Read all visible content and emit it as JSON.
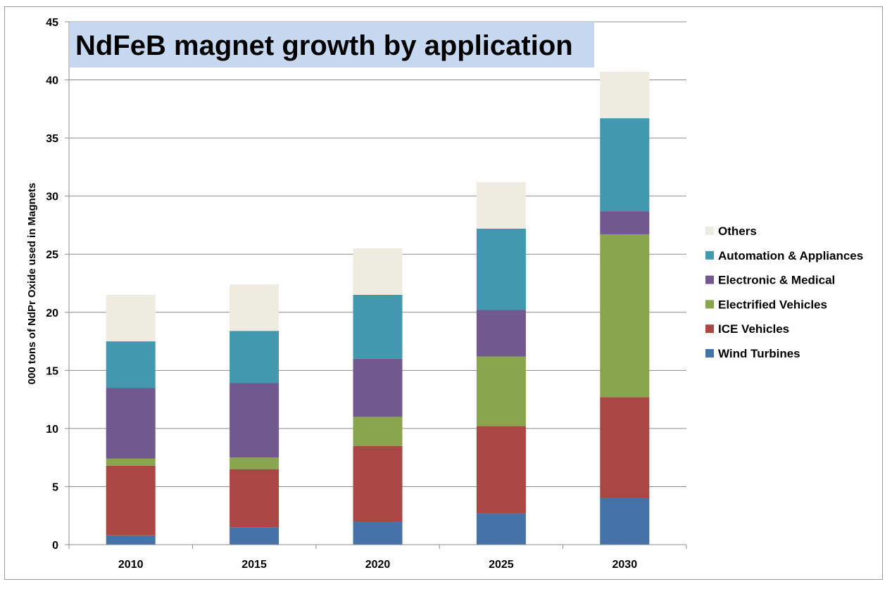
{
  "chart_data": {
    "type": "bar",
    "stacked": true,
    "title": "NdFeB magnet growth by application",
    "xlabel": "",
    "ylabel": "000 tons of NdPr Oxide used in Magnets",
    "categories": [
      "2010",
      "2015",
      "2020",
      "2025",
      "2030"
    ],
    "ylim": [
      0,
      45
    ],
    "yticks": [
      0,
      5,
      10,
      15,
      20,
      25,
      30,
      35,
      40,
      45
    ],
    "grid": true,
    "legend_position": "right",
    "series": [
      {
        "name": "Wind Turbines",
        "color": "#4572a7",
        "values": [
          0.8,
          1.5,
          2.0,
          2.7,
          4.0
        ]
      },
      {
        "name": "ICE Vehicles",
        "color": "#aa4643",
        "values": [
          6.0,
          5.0,
          6.5,
          7.5,
          8.7
        ]
      },
      {
        "name": "Electrified Vehicles",
        "color": "#89a54e",
        "values": [
          0.6,
          1.0,
          2.5,
          6.0,
          14.0
        ]
      },
      {
        "name": "Electronic & Medical",
        "color": "#71588f",
        "values": [
          6.1,
          6.4,
          5.0,
          4.0,
          2.0
        ]
      },
      {
        "name": "Automation & Appliances",
        "color": "#4198af",
        "values": [
          4.0,
          4.5,
          5.5,
          7.0,
          8.0
        ]
      },
      {
        "name": "Others",
        "color": "#eeece1",
        "values": [
          4.0,
          4.0,
          4.0,
          4.0,
          4.0
        ]
      }
    ],
    "title_background": "#c6d9f1"
  }
}
